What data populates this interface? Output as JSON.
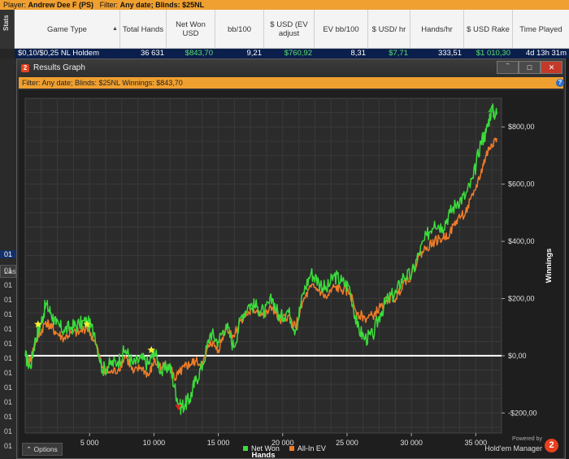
{
  "top_bar": {
    "player_label": "Player:",
    "player_name": "Andrew Dee F (PS)",
    "filter_label": "Filter:",
    "filter_value": "Any date; Blinds: $25NL"
  },
  "stats_tab_label": "Stats",
  "table": {
    "columns": [
      "Game Type",
      "Total Hands",
      "Net Won USD",
      "bb/100",
      "$ USD (EV adjust",
      "EV bb/100",
      "$ USD/ hr",
      "Hands/hr",
      "$ USD Rake",
      "Time Played"
    ],
    "row": [
      "$0,10/$0,25 NL Holdem",
      "36 631",
      "$843,70",
      "9,21",
      "$760,92",
      "8,31",
      "$7,71",
      "333,51",
      "$1 010,30",
      "4d 13h 31m"
    ]
  },
  "left_column": {
    "las_box": "Las",
    "labels": [
      "01",
      "01",
      "01",
      "01",
      "01",
      "01",
      "01",
      "01",
      "01",
      "01",
      "01",
      "01",
      "01",
      "01",
      "01"
    ]
  },
  "window": {
    "title": "Results Graph",
    "icon_text": "2",
    "buttons": [
      "‾",
      "□",
      "✕"
    ],
    "filter_text": "Filter: Any date; Blinds: $25NL Winnings: $843,70",
    "help_text": "?"
  },
  "options_label": "Options",
  "brand": {
    "powered": "Powered by",
    "name": "Hold'em Manager",
    "logo": "2"
  },
  "colors": {
    "net_won": "#3cdc3c",
    "all_in_ev": "#f07c28",
    "zero_line": "#ffffff",
    "accent_orange": "#f0a030",
    "selected_row": "#0a1f4c"
  },
  "chart_data": {
    "type": "line",
    "xlabel": "Hands",
    "ylabel": "Winnings",
    "xlim": [
      0,
      37000
    ],
    "ylim": [
      -270,
      900
    ],
    "x_ticks": [
      5000,
      10000,
      15000,
      20000,
      25000,
      30000,
      35000
    ],
    "x_tick_labels": [
      "5 000",
      "10 000",
      "15 000",
      "20 000",
      "25 000",
      "30 000",
      "35 000"
    ],
    "y_ticks": [
      -200,
      0,
      200,
      400,
      600,
      800
    ],
    "y_tick_labels": [
      "-$200,00",
      "$0,00",
      "$200,00",
      "$400,00",
      "$600,00",
      "$800,00"
    ],
    "grid": true,
    "legend_position": "bottom-center",
    "series": [
      {
        "name": "Net Won",
        "x": [
          0,
          400,
          800,
          1200,
          1600,
          2000,
          2400,
          3000,
          3600,
          4200,
          4800,
          5400,
          6000,
          6600,
          7200,
          7800,
          8400,
          9000,
          9600,
          10000,
          10600,
          11200,
          11600,
          12000,
          12400,
          12800,
          13200,
          13800,
          14400,
          15000,
          15600,
          16200,
          16800,
          17400,
          18000,
          18600,
          19200,
          19800,
          20400,
          21000,
          21600,
          22200,
          22800,
          23400,
          24000,
          24600,
          25200,
          25800,
          26400,
          27000,
          27600,
          28200,
          28800,
          29400,
          30000,
          30600,
          31200,
          31800,
          32400,
          33000,
          33600,
          34200,
          34800,
          35400,
          35800,
          36200,
          36631
        ],
        "values": [
          0,
          -40,
          60,
          110,
          180,
          150,
          110,
          90,
          100,
          110,
          120,
          80,
          -50,
          -30,
          -20,
          20,
          -30,
          -10,
          -30,
          20,
          -60,
          -30,
          -110,
          -180,
          -170,
          -150,
          -90,
          -30,
          80,
          50,
          110,
          30,
          140,
          180,
          170,
          150,
          200,
          130,
          160,
          90,
          220,
          290,
          260,
          230,
          280,
          260,
          240,
          100,
          60,
          70,
          150,
          200,
          220,
          280,
          280,
          360,
          420,
          470,
          450,
          500,
          540,
          560,
          620,
          750,
          780,
          860,
          843.7
        ]
      },
      {
        "name": "All-In EV",
        "x": [
          0,
          400,
          800,
          1200,
          1600,
          2000,
          2400,
          3000,
          3600,
          4200,
          4800,
          5400,
          6000,
          6600,
          7200,
          7800,
          8400,
          9000,
          9600,
          10000,
          10600,
          11200,
          11600,
          12000,
          12400,
          12800,
          13200,
          13800,
          14400,
          15000,
          15600,
          16200,
          16800,
          17400,
          18000,
          18600,
          19200,
          19800,
          20400,
          21000,
          21600,
          22200,
          22800,
          23400,
          24000,
          24600,
          25200,
          25800,
          26400,
          27000,
          27600,
          28200,
          28800,
          29400,
          30000,
          30600,
          31200,
          31800,
          32400,
          33000,
          33600,
          34200,
          34800,
          35400,
          35800,
          36200,
          36631
        ],
        "values": [
          0,
          -20,
          50,
          80,
          120,
          100,
          80,
          60,
          80,
          80,
          100,
          50,
          -40,
          -60,
          -50,
          0,
          -60,
          -40,
          -70,
          -20,
          -40,
          -30,
          -80,
          -60,
          -40,
          -30,
          -20,
          -30,
          50,
          20,
          100,
          70,
          130,
          150,
          160,
          140,
          170,
          120,
          140,
          100,
          190,
          240,
          230,
          200,
          240,
          230,
          220,
          150,
          130,
          140,
          170,
          200,
          200,
          260,
          280,
          350,
          380,
          400,
          410,
          430,
          480,
          500,
          560,
          640,
          700,
          740,
          760.92
        ]
      }
    ],
    "markers": [
      {
        "symbol": "star",
        "color": "#ffee30",
        "x": 1000,
        "y": 110
      },
      {
        "symbol": "star",
        "color": "#ffee30",
        "x": 4800,
        "y": 110
      },
      {
        "symbol": "star",
        "color": "#ffee30",
        "x": 9800,
        "y": 20
      },
      {
        "symbol": "triangle-down",
        "color": "#e02020",
        "x": 11900,
        "y": -180
      },
      {
        "symbol": "triangle-up",
        "color": "#30c030",
        "x": 36200,
        "y": 860
      }
    ]
  }
}
